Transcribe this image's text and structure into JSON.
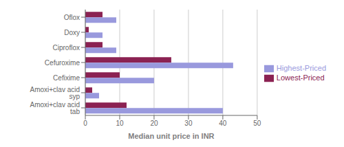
{
  "chart_data": {
    "type": "bar",
    "orientation": "horizontal",
    "xlabel": "Median unit price in INR",
    "categories": [
      "Oflox",
      "Doxy",
      "Ciproflox",
      "Cefuroxime",
      "Cefixime",
      "Amoxi+clav acid syp",
      "Amoxi+clav acid tab"
    ],
    "series": [
      {
        "name": "Lowest-Priced",
        "color": "#8B2252",
        "values": [
          5,
          1,
          5,
          25,
          10,
          2,
          12
        ]
      },
      {
        "name": "Highest-Priced",
        "color": "#9999DD",
        "values": [
          9,
          5,
          9,
          43,
          20,
          4,
          40
        ]
      }
    ],
    "xlim": [
      0,
      50
    ],
    "xticks": [
      0,
      10,
      20,
      30,
      40,
      50
    ],
    "grid": true,
    "legend": "right"
  }
}
